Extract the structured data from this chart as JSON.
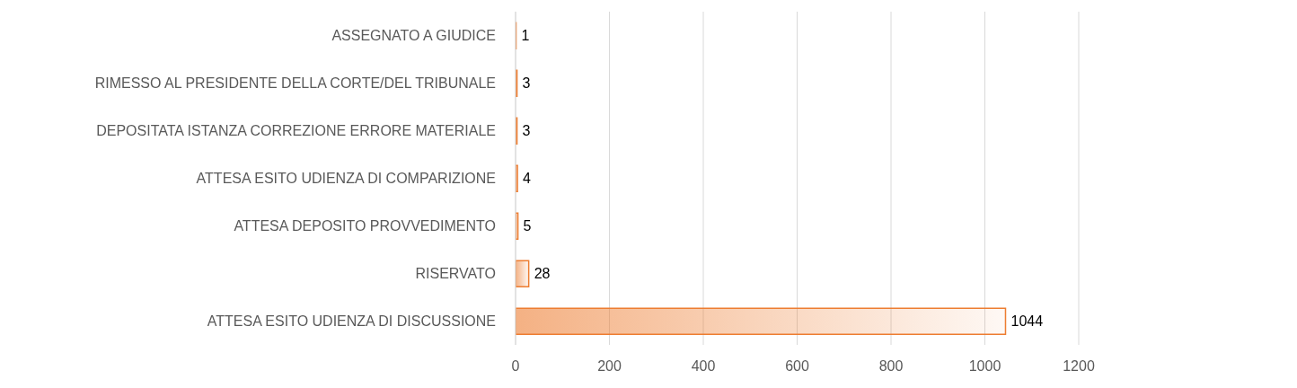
{
  "chart_data": {
    "type": "bar",
    "orientation": "horizontal",
    "categories": [
      "ASSEGNATO A GIUDICE",
      "RIMESSO AL PRESIDENTE DELLA CORTE/DEL TRIBUNALE",
      "DEPOSITATA ISTANZA CORREZIONE ERRORE MATERIALE",
      "ATTESA ESITO UDIENZA DI COMPARIZIONE",
      "ATTESA DEPOSITO PROVVEDIMENTO",
      "RISERVATO",
      "ATTESA ESITO UDIENZA DI DISCUSSIONE"
    ],
    "values": [
      1,
      3,
      3,
      4,
      5,
      28,
      1044
    ],
    "color": "#ed7d31",
    "xlim": [
      0,
      1200
    ],
    "xticks": [
      0,
      200,
      400,
      600,
      800,
      1000,
      1200
    ],
    "grid": "x",
    "data_labels": true
  }
}
